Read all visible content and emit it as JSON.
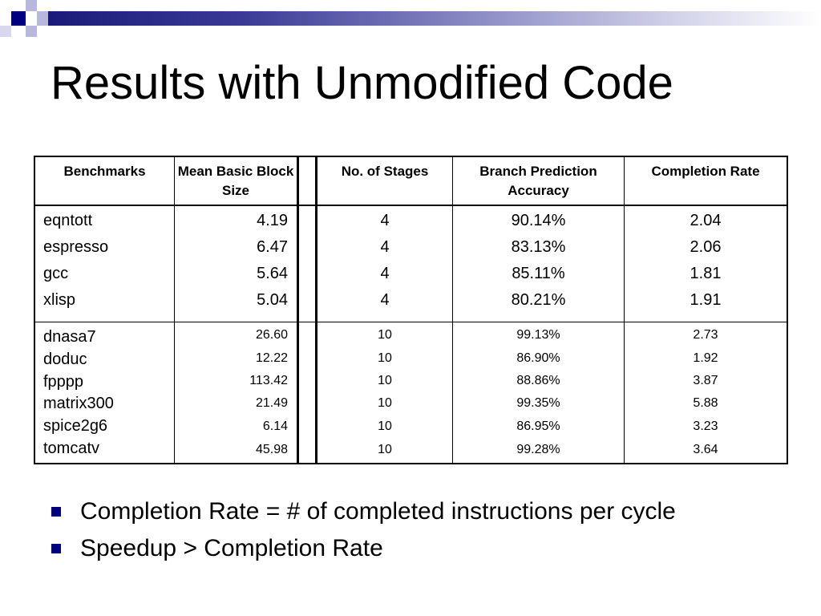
{
  "slide": {
    "title": "Results with Unmodified Code",
    "accent_color": "#000080",
    "bullet_icon": "square-bullet-icon"
  },
  "table": {
    "headers": [
      "Benchmarks",
      "Mean Basic Block Size",
      "No. of Stages",
      "Branch Prediction Accuracy",
      "Completion Rate"
    ],
    "group1": [
      {
        "benchmark": "eqntott",
        "block": "4.19",
        "stages": "4",
        "accuracy": "90.14%",
        "rate": "2.04"
      },
      {
        "benchmark": "espresso",
        "block": "6.47",
        "stages": "4",
        "accuracy": "83.13%",
        "rate": "2.06"
      },
      {
        "benchmark": "gcc",
        "block": "5.64",
        "stages": "4",
        "accuracy": "85.11%",
        "rate": "1.81"
      },
      {
        "benchmark": "xlisp",
        "block": "5.04",
        "stages": "4",
        "accuracy": "80.21%",
        "rate": "1.91"
      }
    ],
    "group2": [
      {
        "benchmark": "dnasa7",
        "block": "26.60",
        "stages": "10",
        "accuracy": "99.13%",
        "rate": "2.73"
      },
      {
        "benchmark": "doduc",
        "block": "12.22",
        "stages": "10",
        "accuracy": "86.90%",
        "rate": "1.92"
      },
      {
        "benchmark": "fpppp",
        "block": "113.42",
        "stages": "10",
        "accuracy": "88.86%",
        "rate": "3.87"
      },
      {
        "benchmark": "matrix300",
        "block": "21.49",
        "stages": "10",
        "accuracy": "99.35%",
        "rate": "5.88"
      },
      {
        "benchmark": "spice2g6",
        "block": "6.14",
        "stages": "10",
        "accuracy": "86.95%",
        "rate": "3.23"
      },
      {
        "benchmark": "tomcatv",
        "block": "45.98",
        "stages": "10",
        "accuracy": "99.28%",
        "rate": "3.64"
      }
    ]
  },
  "bullets": [
    "Completion Rate = # of completed instructions per cycle",
    "Speedup > Completion Rate"
  ]
}
